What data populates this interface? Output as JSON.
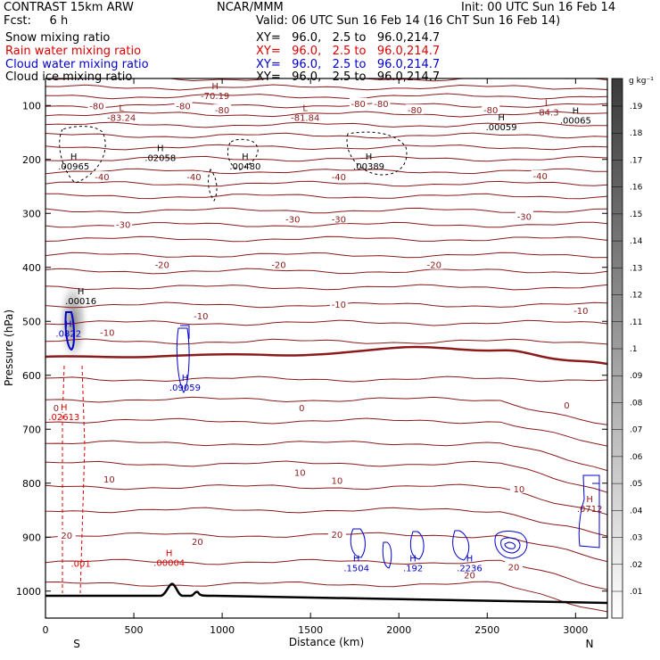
{
  "header": {
    "title_left": "CONTRAST 15km ARW",
    "title_center": "NCAR/MMM",
    "init": "Init: 00 UTC Sun 16 Feb 14",
    "fcst": "Fcst:     6 h",
    "valid": "Valid: 06 UTC Sun 16 Feb 14 (16 ChT Sun 16 Feb 14)",
    "fields": [
      {
        "label": "Snow mixing ratio",
        "xy": "XY=   96.0,   2.5 to   96.0,214.7",
        "color": "#000000"
      },
      {
        "label": "Rain water mixing ratio",
        "xy": "XY=   96.0,   2.5 to   96.0,214.7",
        "color": "#dd0000"
      },
      {
        "label": "Cloud water mixing ratio",
        "xy": "XY=   96.0,   2.5 to   96.0,214.7",
        "color": "#0000cc"
      },
      {
        "label": "Cloud ice mixing ratio",
        "xy": "XY=   96.0,   2.5 to   96.0,214.7",
        "color": "#000000"
      }
    ]
  },
  "colors": {
    "temperature_contour": "#8b1a1a",
    "rain": "#dd0000",
    "cloud_water": "#0000cc",
    "snow": "#000000",
    "terrain": "#000000"
  },
  "chart_data": {
    "type": "contour-cross-section",
    "xlabel": "Distance (km)",
    "ylabel": "Pressure (hPa)",
    "xlim": [
      0,
      3180
    ],
    "ylim": [
      1050,
      50
    ],
    "x_ticks": [
      0,
      500,
      1000,
      1500,
      2000,
      2500,
      3000
    ],
    "y_ticks": [
      100,
      200,
      300,
      400,
      500,
      600,
      700,
      800,
      900,
      1000
    ],
    "endpoints": {
      "left": "S",
      "right": "N"
    },
    "colorbar": {
      "unit": "g kg⁻¹",
      "ticks": [
        ".01",
        ".02",
        ".03",
        ".04",
        ".05",
        ".06",
        ".07",
        ".08",
        ".09",
        ".1",
        ".11",
        ".12",
        ".13",
        ".14",
        ".15",
        ".16",
        ".17",
        ".18",
        ".19"
      ]
    },
    "temperature_labels": [
      {
        "text": "-80",
        "x": 290,
        "p": 100
      },
      {
        "text": "-80",
        "x": 780,
        "p": 100
      },
      {
        "text": "-80",
        "x": 1000,
        "p": 108
      },
      {
        "text": "-80",
        "x": 1770,
        "p": 96
      },
      {
        "text": "-80",
        "x": 1900,
        "p": 96
      },
      {
        "text": "-80",
        "x": 2090,
        "p": 108
      },
      {
        "text": "-80",
        "x": 2520,
        "p": 108
      },
      {
        "text": "-40",
        "x": 320,
        "p": 232
      },
      {
        "text": "-40",
        "x": 840,
        "p": 232
      },
      {
        "text": "-40",
        "x": 1660,
        "p": 232
      },
      {
        "text": "-40",
        "x": 2800,
        "p": 230
      },
      {
        "text": "-30",
        "x": 440,
        "p": 320
      },
      {
        "text": "-30",
        "x": 1400,
        "p": 310
      },
      {
        "text": "-30",
        "x": 1660,
        "p": 310
      },
      {
        "text": "-30",
        "x": 2710,
        "p": 305
      },
      {
        "text": "-20",
        "x": 660,
        "p": 395
      },
      {
        "text": "-20",
        "x": 1320,
        "p": 395
      },
      {
        "text": "-20",
        "x": 2200,
        "p": 395
      },
      {
        "text": "-10",
        "x": 350,
        "p": 520
      },
      {
        "text": "-10",
        "x": 880,
        "p": 490
      },
      {
        "text": "-10",
        "x": 1660,
        "p": 468
      },
      {
        "text": "-10",
        "x": 3030,
        "p": 480
      },
      {
        "text": "0",
        "x": 60,
        "p": 660
      },
      {
        "text": "0",
        "x": 1450,
        "p": 660
      },
      {
        "text": "0",
        "x": 2950,
        "p": 655
      },
      {
        "text": "10",
        "x": 360,
        "p": 792
      },
      {
        "text": "10",
        "x": 1440,
        "p": 780
      },
      {
        "text": "10",
        "x": 1650,
        "p": 795
      },
      {
        "text": "10",
        "x": 2680,
        "p": 810
      },
      {
        "text": "20",
        "x": 120,
        "p": 896
      },
      {
        "text": "20",
        "x": 860,
        "p": 908
      },
      {
        "text": "20",
        "x": 1650,
        "p": 895
      },
      {
        "text": "20",
        "x": 2400,
        "p": 970
      },
      {
        "text": "20",
        "x": 2650,
        "p": 955
      }
    ],
    "minmax_labels": [
      {
        "mark": "L",
        "value": "-83.24",
        "x": 430,
        "p": 110,
        "color": "#8b1a1a"
      },
      {
        "mark": "H",
        "value": "-70.19",
        "x": 960,
        "p": 70,
        "color": "#8b1a1a"
      },
      {
        "mark": "L",
        "value": "-81.84",
        "x": 1470,
        "p": 110,
        "color": "#8b1a1a"
      },
      {
        "mark": "L",
        "value": "-84.3",
        "x": 2840,
        "p": 100,
        "color": "#8b1a1a"
      },
      {
        "mark": "H",
        "value": ".00065",
        "x": 3000,
        "p": 115,
        "color": "#000000"
      },
      {
        "mark": "H",
        "value": ".00059",
        "x": 2580,
        "p": 128,
        "color": "#000000"
      },
      {
        "mark": "H",
        "value": ".00965",
        "x": 160,
        "p": 200,
        "color": "#000000"
      },
      {
        "mark": "H",
        "value": ".02058",
        "x": 650,
        "p": 185,
        "color": "#000000"
      },
      {
        "mark": "H",
        "value": ".00480",
        "x": 1130,
        "p": 200,
        "color": "#000000"
      },
      {
        "mark": "H",
        "value": ".00389",
        "x": 1830,
        "p": 200,
        "color": "#000000"
      },
      {
        "mark": "H",
        "value": ".00016",
        "x": 200,
        "p": 450,
        "color": "#000000"
      },
      {
        "mark": "H",
        "value": ".0822",
        "x": 130,
        "p": 510,
        "color": "#0000cc"
      },
      {
        "mark": "H",
        "value": ".09059",
        "x": 790,
        "p": 610,
        "color": "#0000cc"
      },
      {
        "mark": "H",
        "value": ".02613",
        "x": 105,
        "p": 665,
        "color": "#dd0000"
      },
      {
        "mark": "H",
        "value": ".0712",
        "x": 3080,
        "p": 835,
        "color": "#8b1a1a"
      },
      {
        "mark": "H",
        "value": ".00004",
        "x": 700,
        "p": 935,
        "color": "#dd0000"
      },
      {
        "mark": "H",
        "value": ".1504",
        "x": 1760,
        "p": 945,
        "color": "#0000cc"
      },
      {
        "mark": "H",
        "value": ".192",
        "x": 2080,
        "p": 945,
        "color": "#0000cc"
      },
      {
        "mark": "H",
        "value": ".2236",
        "x": 2400,
        "p": 945,
        "color": "#0000cc"
      }
    ],
    "extra_labels": [
      {
        "text": ".001",
        "x": 200,
        "p": 955,
        "color": "#dd0000"
      }
    ]
  }
}
